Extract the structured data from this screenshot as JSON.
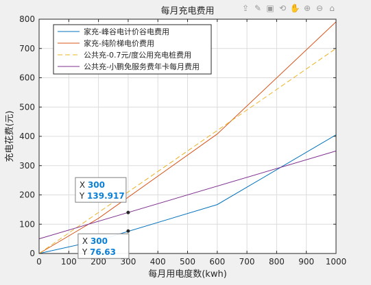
{
  "toolbar": [
    {
      "name": "export-icon",
      "glyph": "⇪"
    },
    {
      "name": "brush-icon",
      "glyph": "✎"
    },
    {
      "name": "datatip-icon",
      "glyph": "▣"
    },
    {
      "name": "rotate-icon",
      "glyph": "⟲"
    },
    {
      "name": "pan-icon",
      "glyph": "✋"
    },
    {
      "name": "zoom-in-icon",
      "glyph": "⊕"
    },
    {
      "name": "zoom-out-icon",
      "glyph": "⊖"
    },
    {
      "name": "home-icon",
      "glyph": "⌂"
    }
  ],
  "chart_data": {
    "type": "line",
    "title": "每月充电费用",
    "xlabel": "每月用电度数(kwh)",
    "ylabel": "充电花费(元)",
    "xlim": [
      0,
      1000
    ],
    "ylim": [
      0,
      800
    ],
    "xticks": [
      0,
      100,
      200,
      300,
      400,
      500,
      600,
      700,
      800,
      900,
      1000
    ],
    "yticks": [
      0,
      100,
      200,
      300,
      400,
      500,
      600,
      700,
      800
    ],
    "grid": true,
    "legend_position": "top-left",
    "series": [
      {
        "name": "家充-峰谷电计价谷电费用",
        "color": "#0072bd",
        "dash": "",
        "x": [
          0,
          200,
          600,
          1000
        ],
        "y": [
          0,
          45,
          167,
          405
        ]
      },
      {
        "name": "家充-纯阶梯电价费用",
        "color": "#d95319",
        "dash": "",
        "x": [
          0,
          200,
          600,
          1000
        ],
        "y": [
          0,
          120,
          408,
          791
        ]
      },
      {
        "name": "公共充-0.7元/度公用充电桩费用",
        "color": "#edb120",
        "dash": "7,4",
        "x": [
          0,
          1000
        ],
        "y": [
          0,
          700
        ]
      },
      {
        "name": "公共充-小鹏免服务费年卡每月费用",
        "color": "#7e2f8e",
        "dash": "",
        "x": [
          0,
          1000
        ],
        "y": [
          50,
          350
        ]
      }
    ],
    "datatips": [
      {
        "x_label": "X",
        "x_value": "300",
        "y_label": "Y",
        "y_value": "139.917",
        "x": 300,
        "y": 139.917,
        "box": "above"
      },
      {
        "x_label": "X",
        "x_value": "300",
        "y_label": "Y",
        "y_value": "76.63",
        "x": 300,
        "y": 76.63,
        "box": "below"
      }
    ]
  }
}
